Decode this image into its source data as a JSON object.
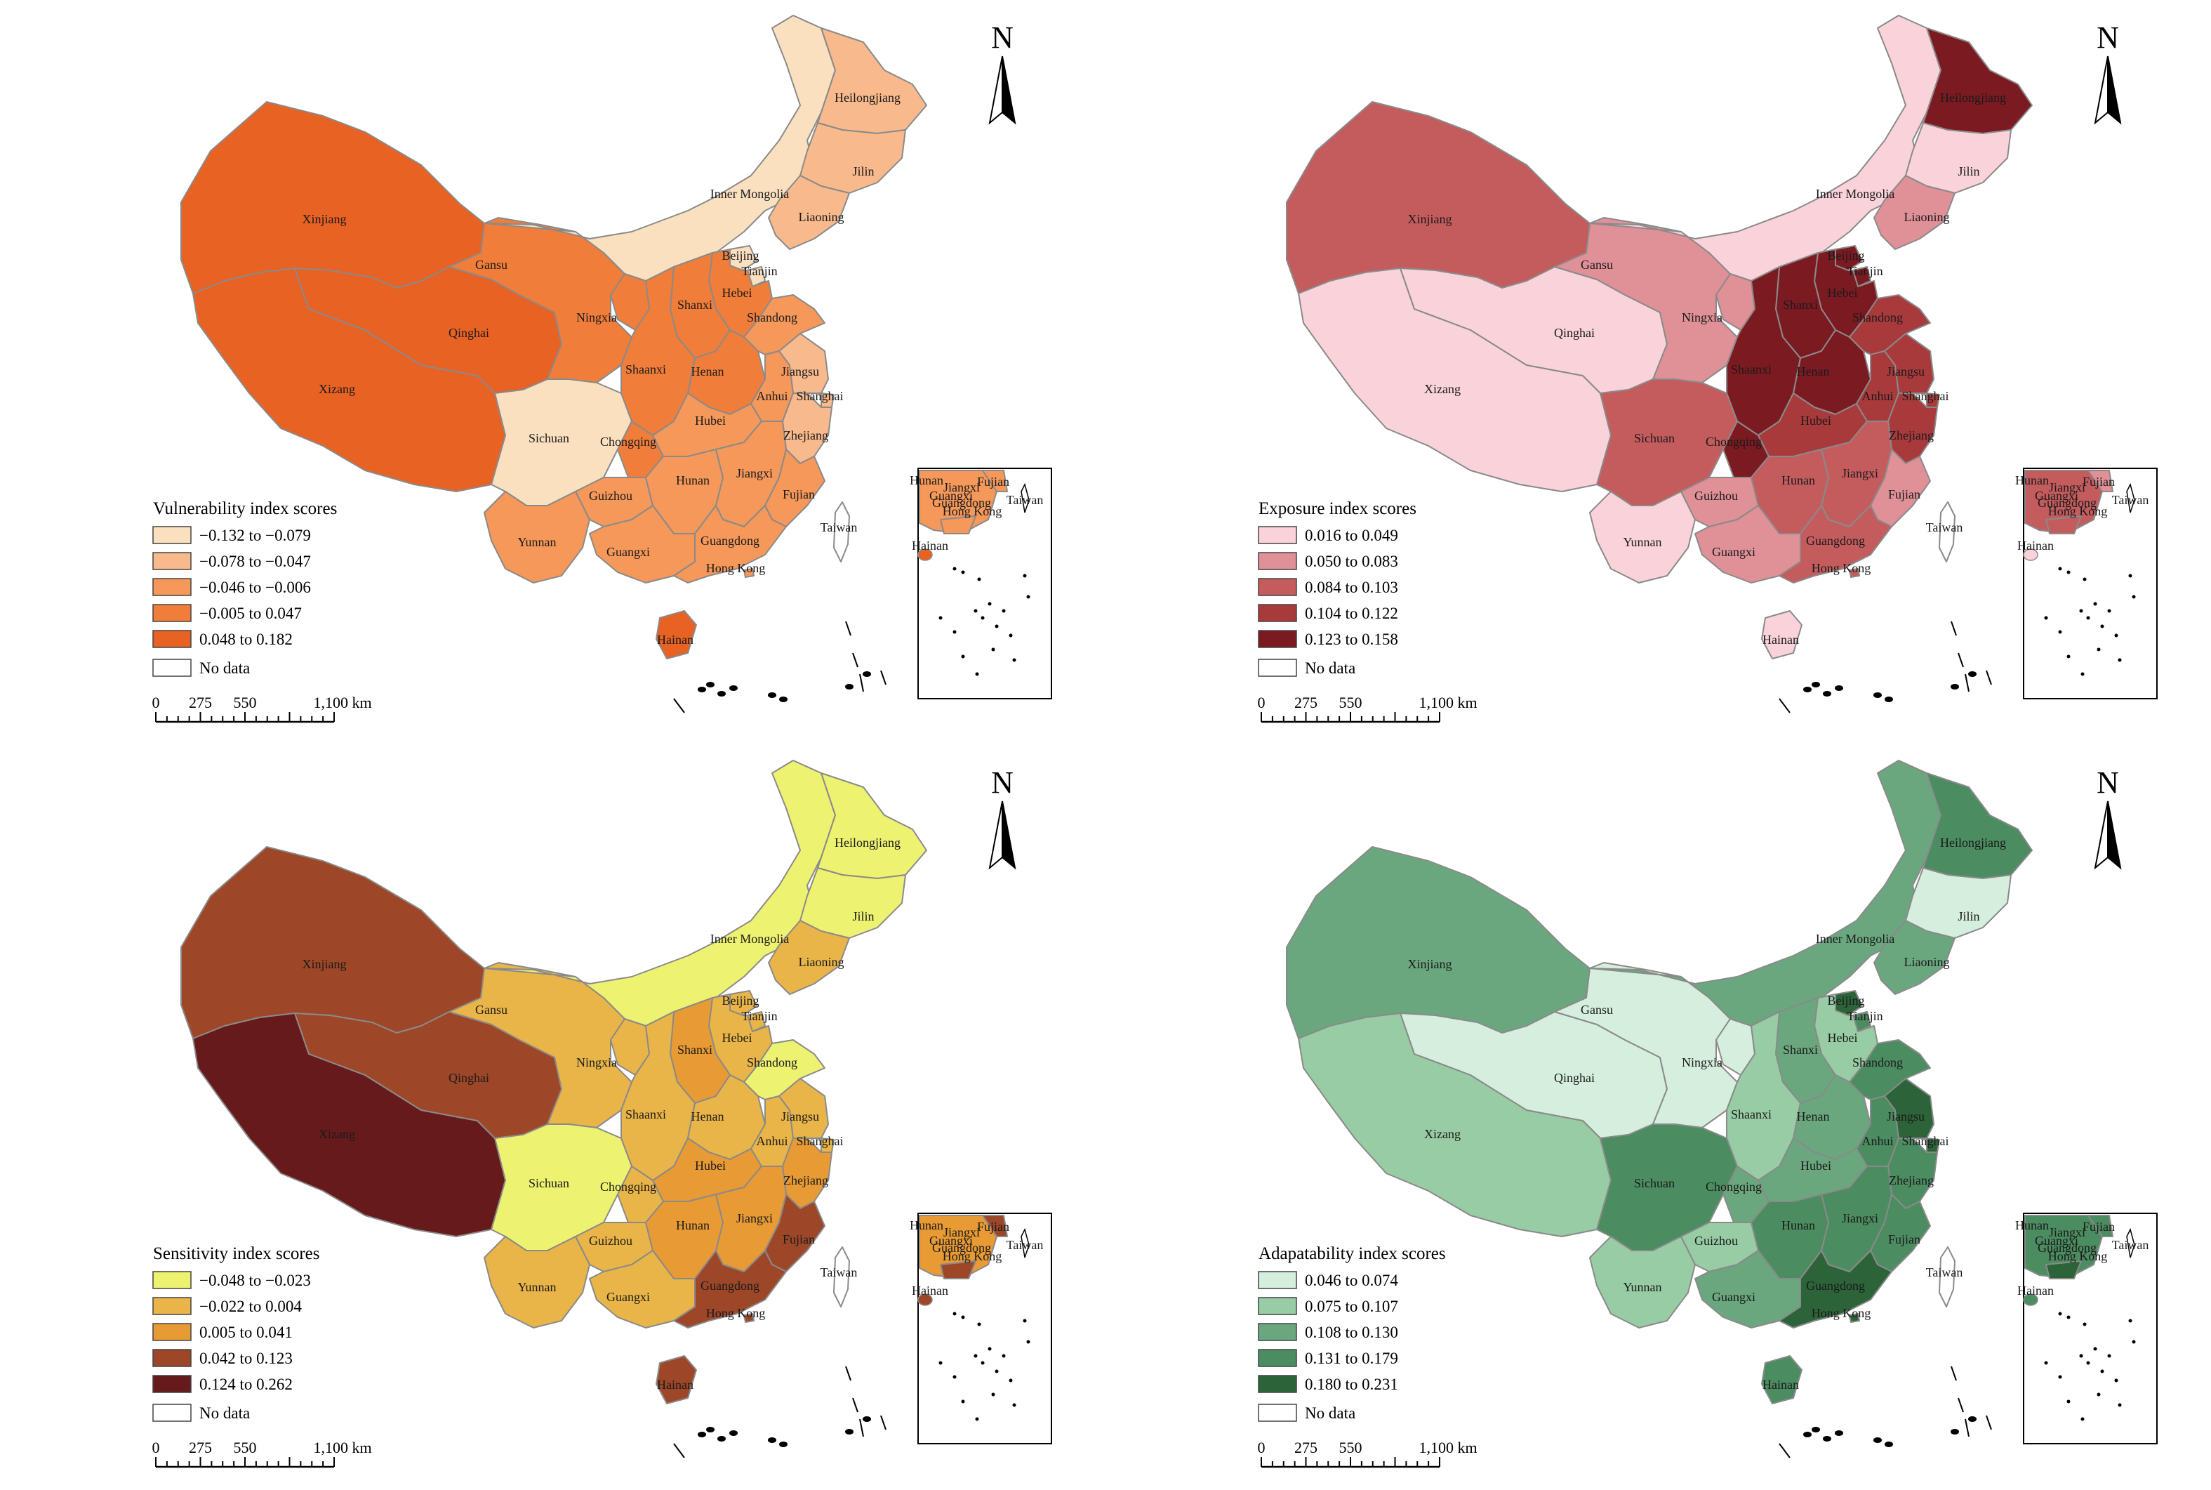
{
  "maps": [
    {
      "key": "vulnerability",
      "legend_title": "Vulnerability index scores",
      "classes": [
        {
          "label": "−0.132 to −0.079",
          "color": "#fbe0c0"
        },
        {
          "label": "−0.078 to −0.047",
          "color": "#f8b98c"
        },
        {
          "label": "−0.046 to −0.006",
          "color": "#f5985a"
        },
        {
          "label": "−0.005 to 0.047",
          "color": "#f07e3a"
        },
        {
          "label": "0.048 to 0.182",
          "color": "#e86224"
        }
      ],
      "no_data": "No data",
      "assign": {
        "Xinjiang": 4,
        "Xizang": 4,
        "Qinghai": 4,
        "Gansu": 3,
        "Inner Mongolia": 0,
        "Heilongjiang": 1,
        "Jilin": 1,
        "Liaoning": 1,
        "Beijing": 0,
        "Tianjin": 0,
        "Hebei": 3,
        "Shanxi": 3,
        "Ningxia": 3,
        "Shaanxi": 3,
        "Henan": 3,
        "Shandong": 2,
        "Sichuan": 0,
        "Chongqing": 3,
        "Hubei": 2,
        "Anhui": 2,
        "Jiangsu": 1,
        "Shanghai": 1,
        "Zhejiang": 1,
        "Yunnan": 2,
        "Guizhou": 2,
        "Hunan": 2,
        "Jiangxi": 2,
        "Fujian": 2,
        "Guangxi": 2,
        "Guangdong": 2,
        "Hong Kong": 2,
        "Hainan": 4,
        "Taiwan": -1
      }
    },
    {
      "key": "exposure",
      "legend_title": "Exposure index scores",
      "classes": [
        {
          "label": "0.016 to 0.049",
          "color": "#f9d3d9"
        },
        {
          "label": "0.050 to 0.083",
          "color": "#e09097"
        },
        {
          "label": "0.084 to 0.103",
          "color": "#c45c5e"
        },
        {
          "label": "0.104 to 0.122",
          "color": "#a83a3c"
        },
        {
          "label": "0.123 to 0.158",
          "color": "#7c1a22"
        }
      ],
      "no_data": "No data",
      "assign": {
        "Xinjiang": 2,
        "Xizang": 0,
        "Qinghai": 0,
        "Gansu": 1,
        "Inner Mongolia": 0,
        "Heilongjiang": 4,
        "Jilin": 0,
        "Liaoning": 1,
        "Beijing": 4,
        "Tianjin": 4,
        "Hebei": 4,
        "Shanxi": 4,
        "Ningxia": 1,
        "Shaanxi": 4,
        "Henan": 4,
        "Shandong": 3,
        "Sichuan": 2,
        "Chongqing": 4,
        "Hubei": 3,
        "Anhui": 3,
        "Jiangsu": 3,
        "Shanghai": 3,
        "Zhejiang": 3,
        "Yunnan": 0,
        "Guizhou": 1,
        "Hunan": 2,
        "Jiangxi": 2,
        "Fujian": 1,
        "Guangxi": 1,
        "Guangdong": 2,
        "Hong Kong": 2,
        "Hainan": 0,
        "Taiwan": -1
      }
    },
    {
      "key": "sensitivity",
      "legend_title": "Sensitivity index scores",
      "classes": [
        {
          "label": "−0.048 to −0.023",
          "color": "#eef271"
        },
        {
          "label": "−0.022 to 0.004",
          "color": "#e9b548"
        },
        {
          "label": "0.005 to 0.041",
          "color": "#e89a34"
        },
        {
          "label": "0.042 to 0.123",
          "color": "#9d4728"
        },
        {
          "label": "0.124 to 0.262",
          "color": "#661a1c"
        }
      ],
      "no_data": "No data",
      "assign": {
        "Xinjiang": 3,
        "Xizang": 4,
        "Qinghai": 3,
        "Gansu": 1,
        "Inner Mongolia": 0,
        "Heilongjiang": 0,
        "Jilin": 0,
        "Liaoning": 1,
        "Beijing": 1,
        "Tianjin": 1,
        "Hebei": 1,
        "Shanxi": 2,
        "Ningxia": 1,
        "Shaanxi": 1,
        "Henan": 1,
        "Shandong": 0,
        "Sichuan": 0,
        "Chongqing": 1,
        "Hubei": 2,
        "Anhui": 1,
        "Jiangsu": 1,
        "Shanghai": 1,
        "Zhejiang": 2,
        "Yunnan": 1,
        "Guizhou": 1,
        "Hunan": 2,
        "Jiangxi": 2,
        "Fujian": 3,
        "Guangxi": 1,
        "Guangdong": 3,
        "Hong Kong": 3,
        "Hainan": 3,
        "Taiwan": -1
      }
    },
    {
      "key": "adaptability",
      "legend_title": "Adapatability index scores",
      "classes": [
        {
          "label": "0.046 to 0.074",
          "color": "#d5eedd"
        },
        {
          "label": "0.075 to 0.107",
          "color": "#98cca4"
        },
        {
          "label": "0.108 to 0.130",
          "color": "#6aa77e"
        },
        {
          "label": "0.131 to 0.179",
          "color": "#4c8c61"
        },
        {
          "label": "0.180 to 0.231",
          "color": "#2d6339"
        }
      ],
      "no_data": "No data",
      "assign": {
        "Xinjiang": 2,
        "Xizang": 1,
        "Qinghai": 0,
        "Gansu": 0,
        "Inner Mongolia": 2,
        "Heilongjiang": 3,
        "Jilin": 0,
        "Liaoning": 2,
        "Beijing": 4,
        "Tianjin": 3,
        "Hebei": 1,
        "Shanxi": 2,
        "Ningxia": 0,
        "Shaanxi": 1,
        "Henan": 2,
        "Shandong": 3,
        "Sichuan": 3,
        "Chongqing": 2,
        "Hubei": 2,
        "Anhui": 3,
        "Jiangsu": 4,
        "Shanghai": 4,
        "Zhejiang": 3,
        "Yunnan": 1,
        "Guizhou": 1,
        "Hunan": 3,
        "Jiangxi": 3,
        "Fujian": 3,
        "Guangxi": 2,
        "Guangdong": 4,
        "Hong Kong": 4,
        "Hainan": 3,
        "Taiwan": -1
      }
    }
  ],
  "north_label": "N",
  "scale_bar": {
    "ticks": [
      "0",
      "275",
      "550",
      "1,100 km"
    ]
  },
  "inset_labels": [
    "Hunan",
    "Jiangxi",
    "Fujian",
    "Guangxi",
    "Guangdong",
    "Hong Kong",
    "Taiwan",
    "Hainan"
  ],
  "province_labels": [
    "Xinjiang",
    "Xizang",
    "Qinghai",
    "Gansu",
    "Inner Mongolia",
    "Heilongjiang",
    "Jilin",
    "Liaoning",
    "Beijing",
    "Tianjin",
    "Hebei",
    "Shanxi",
    "Ningxia",
    "Shaanxi",
    "Henan",
    "Shandong",
    "Sichuan",
    "Chongqing",
    "Hubei",
    "Anhui",
    "Jiangsu",
    "Shanghai",
    "Zhejiang",
    "Yunnan",
    "Guizhou",
    "Hunan",
    "Jiangxi",
    "Fujian",
    "Guangxi",
    "Guangdong",
    "Hong Kong",
    "Hainan",
    "Taiwan"
  ]
}
